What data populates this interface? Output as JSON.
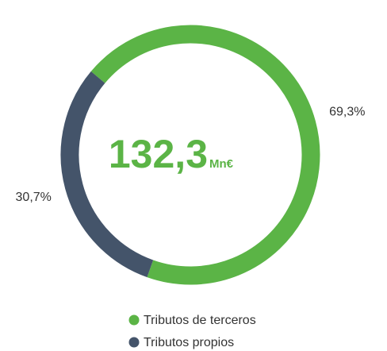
{
  "chart_data": {
    "type": "donut",
    "categories": [
      "Tributos de terceros",
      "Tributos propios"
    ],
    "values": [
      69.3,
      30.7
    ],
    "value_labels": [
      "69,3%",
      "30,7%"
    ],
    "colors": [
      "#5bb446",
      "#44546a"
    ],
    "center_value": "132,3",
    "center_unit": "Mn€",
    "legend": "bottom"
  }
}
